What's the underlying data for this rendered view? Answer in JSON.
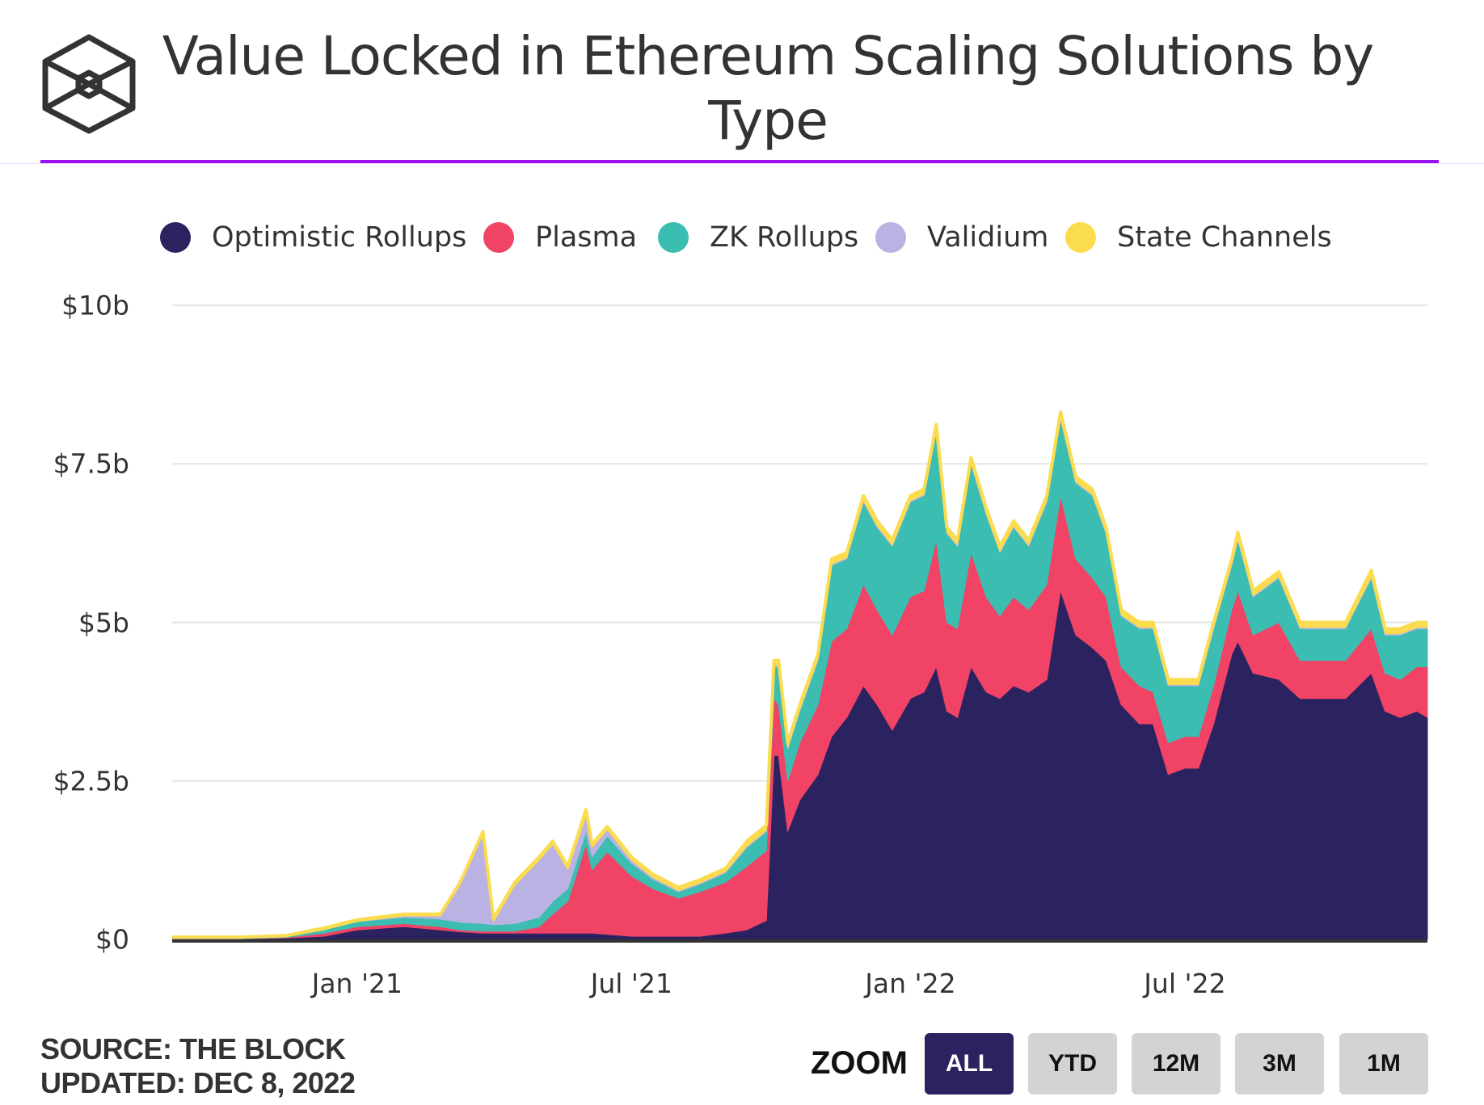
{
  "header": {
    "title_line1": "Value Locked in Ethereum Scaling Solutions by",
    "title_line2": "Type"
  },
  "footer": {
    "source": "SOURCE: THE BLOCK",
    "updated": "UPDATED: DEC 8, 2022"
  },
  "zoom": {
    "label": "ZOOM",
    "buttons": [
      {
        "label": "ALL",
        "active": true
      },
      {
        "label": "YTD"
      },
      {
        "label": "12M"
      },
      {
        "label": "3M"
      },
      {
        "label": "1M"
      }
    ]
  },
  "colors": {
    "accent": "#9b10f3",
    "grid": "#e6e6e6",
    "axis": "#333333"
  },
  "chart_data": {
    "type": "area",
    "stacked": true,
    "title": "Value Locked in Ethereum Scaling Solutions by Type",
    "xlabel": "",
    "ylabel": "",
    "ylim": [
      0,
      10
    ],
    "yunit": "$b",
    "xlim": [
      "2020-09-01",
      "2022-12-08"
    ],
    "yticks": [
      {
        "v": 0,
        "label": "$0"
      },
      {
        "v": 2.5,
        "label": "$2.5b"
      },
      {
        "v": 5,
        "label": "$5b"
      },
      {
        "v": 7.5,
        "label": "$7.5b"
      },
      {
        "v": 10,
        "label": "$10b"
      }
    ],
    "xticks": [
      {
        "date": "2021-01-01",
        "label": "Jan '21"
      },
      {
        "date": "2021-07-01",
        "label": "Jul '21"
      },
      {
        "date": "2022-01-01",
        "label": "Jan '22"
      },
      {
        "date": "2022-07-01",
        "label": "Jul '22"
      }
    ],
    "grid": true,
    "legend": "top",
    "x": [
      "2020-09-01",
      "2020-10-15",
      "2020-11-15",
      "2020-12-10",
      "2021-01-01",
      "2021-02-01",
      "2021-02-25",
      "2021-03-10",
      "2021-03-25",
      "2021-04-01",
      "2021-04-15",
      "2021-05-01",
      "2021-05-10",
      "2021-05-20",
      "2021-06-01",
      "2021-06-05",
      "2021-06-15",
      "2021-07-01",
      "2021-07-15",
      "2021-08-01",
      "2021-08-15",
      "2021-09-01",
      "2021-09-15",
      "2021-09-28",
      "2021-10-03",
      "2021-10-06",
      "2021-10-12",
      "2021-10-20",
      "2021-11-01",
      "2021-11-10",
      "2021-11-20",
      "2021-12-01",
      "2021-12-10",
      "2021-12-20",
      "2022-01-01",
      "2022-01-10",
      "2022-01-18",
      "2022-01-25",
      "2022-02-01",
      "2022-02-10",
      "2022-02-20",
      "2022-03-01",
      "2022-03-10",
      "2022-03-20",
      "2022-04-01",
      "2022-04-10",
      "2022-04-20",
      "2022-05-01",
      "2022-05-10",
      "2022-05-20",
      "2022-06-01",
      "2022-06-10",
      "2022-06-20",
      "2022-07-01",
      "2022-07-10",
      "2022-07-20",
      "2022-08-01",
      "2022-08-05",
      "2022-08-15",
      "2022-09-01",
      "2022-09-15",
      "2022-10-01",
      "2022-10-15",
      "2022-11-01",
      "2022-11-10",
      "2022-11-20",
      "2022-12-01",
      "2022-12-08"
    ],
    "series": [
      {
        "name": "Optimistic Rollups",
        "color": "#2b2360",
        "values": [
          0.01,
          0.01,
          0.02,
          0.05,
          0.15,
          0.2,
          0.15,
          0.12,
          0.1,
          0.1,
          0.1,
          0.1,
          0.1,
          0.1,
          0.1,
          0.1,
          0.08,
          0.05,
          0.05,
          0.05,
          0.05,
          0.1,
          0.15,
          0.3,
          2.9,
          2.9,
          1.7,
          2.2,
          2.6,
          3.2,
          3.5,
          4.0,
          3.7,
          3.3,
          3.8,
          3.9,
          4.3,
          3.6,
          3.5,
          4.3,
          3.9,
          3.8,
          4.0,
          3.9,
          4.1,
          5.5,
          4.8,
          4.6,
          4.4,
          3.7,
          3.4,
          3.4,
          2.6,
          2.7,
          2.7,
          3.4,
          4.5,
          4.7,
          4.2,
          4.1,
          3.8,
          3.8,
          3.8,
          4.2,
          3.6,
          3.5,
          3.6,
          3.5
        ]
      },
      {
        "name": "Plasma",
        "color": "#f04366",
        "values": [
          0,
          0,
          0.01,
          0.05,
          0.05,
          0.05,
          0.05,
          0.03,
          0.03,
          0.03,
          0.03,
          0.1,
          0.3,
          0.5,
          1.4,
          1.0,
          1.3,
          0.95,
          0.75,
          0.6,
          0.7,
          0.8,
          1.0,
          1.1,
          0.9,
          0.8,
          0.8,
          0.9,
          1.1,
          1.5,
          1.4,
          1.6,
          1.5,
          1.5,
          1.6,
          1.6,
          2.0,
          1.4,
          1.4,
          1.8,
          1.5,
          1.3,
          1.4,
          1.3,
          1.5,
          1.5,
          1.2,
          1.1,
          1.0,
          0.6,
          0.6,
          0.5,
          0.5,
          0.5,
          0.5,
          0.6,
          0.7,
          0.8,
          0.6,
          0.9,
          0.6,
          0.6,
          0.6,
          0.7,
          0.6,
          0.6,
          0.7,
          0.8
        ]
      },
      {
        "name": "ZK Rollups",
        "color": "#3cbdb1",
        "values": [
          0.005,
          0.005,
          0.01,
          0.05,
          0.08,
          0.1,
          0.12,
          0.12,
          0.12,
          0.1,
          0.12,
          0.15,
          0.2,
          0.2,
          0.2,
          0.2,
          0.25,
          0.2,
          0.15,
          0.1,
          0.12,
          0.15,
          0.3,
          0.3,
          0.5,
          0.6,
          0.5,
          0.5,
          0.7,
          1.2,
          1.1,
          1.3,
          1.3,
          1.4,
          1.5,
          1.5,
          1.7,
          1.4,
          1.3,
          1.4,
          1.3,
          1.0,
          1.1,
          1.0,
          1.3,
          1.2,
          1.2,
          1.3,
          1.0,
          0.8,
          0.9,
          1.0,
          0.9,
          0.8,
          0.8,
          0.9,
          0.7,
          0.8,
          0.6,
          0.7,
          0.5,
          0.5,
          0.5,
          0.8,
          0.6,
          0.7,
          0.6,
          0.6
        ]
      },
      {
        "name": "Validium",
        "color": "#b9b2e2",
        "values": [
          0,
          0,
          0,
          0,
          0,
          0.02,
          0.05,
          0.6,
          1.4,
          0.05,
          0.6,
          0.9,
          0.9,
          0.3,
          0.25,
          0.15,
          0.1,
          0.05,
          0.03,
          0.02,
          0.02,
          0.02,
          0.02,
          0.02,
          0.02,
          0.02,
          0.02,
          0.02,
          0.02,
          0.02,
          0.02,
          0.02,
          0.02,
          0.02,
          0.02,
          0.02,
          0.02,
          0.02,
          0.02,
          0.02,
          0.02,
          0.02,
          0.02,
          0.02,
          0.02,
          0.02,
          0.02,
          0.02,
          0.02,
          0.02,
          0.02,
          0.02,
          0.02,
          0.02,
          0.02,
          0.02,
          0.02,
          0.02,
          0.02,
          0.02,
          0.02,
          0.02,
          0.02,
          0.02,
          0.02,
          0.02,
          0.02,
          0.02
        ]
      },
      {
        "name": "State Channels",
        "color": "#fbdc4e",
        "values": [
          0.02,
          0.02,
          0.02,
          0.03,
          0.03,
          0.03,
          0.03,
          0.03,
          0.05,
          0.05,
          0.05,
          0.05,
          0.05,
          0.05,
          0.1,
          0.05,
          0.05,
          0.05,
          0.05,
          0.05,
          0.05,
          0.05,
          0.08,
          0.08,
          0.08,
          0.08,
          0.08,
          0.08,
          0.08,
          0.08,
          0.08,
          0.08,
          0.08,
          0.08,
          0.08,
          0.08,
          0.1,
          0.08,
          0.08,
          0.08,
          0.08,
          0.08,
          0.08,
          0.08,
          0.08,
          0.1,
          0.08,
          0.08,
          0.08,
          0.08,
          0.08,
          0.08,
          0.08,
          0.08,
          0.08,
          0.08,
          0.08,
          0.1,
          0.08,
          0.08,
          0.08,
          0.08,
          0.08,
          0.1,
          0.08,
          0.08,
          0.08,
          0.08
        ]
      }
    ]
  }
}
